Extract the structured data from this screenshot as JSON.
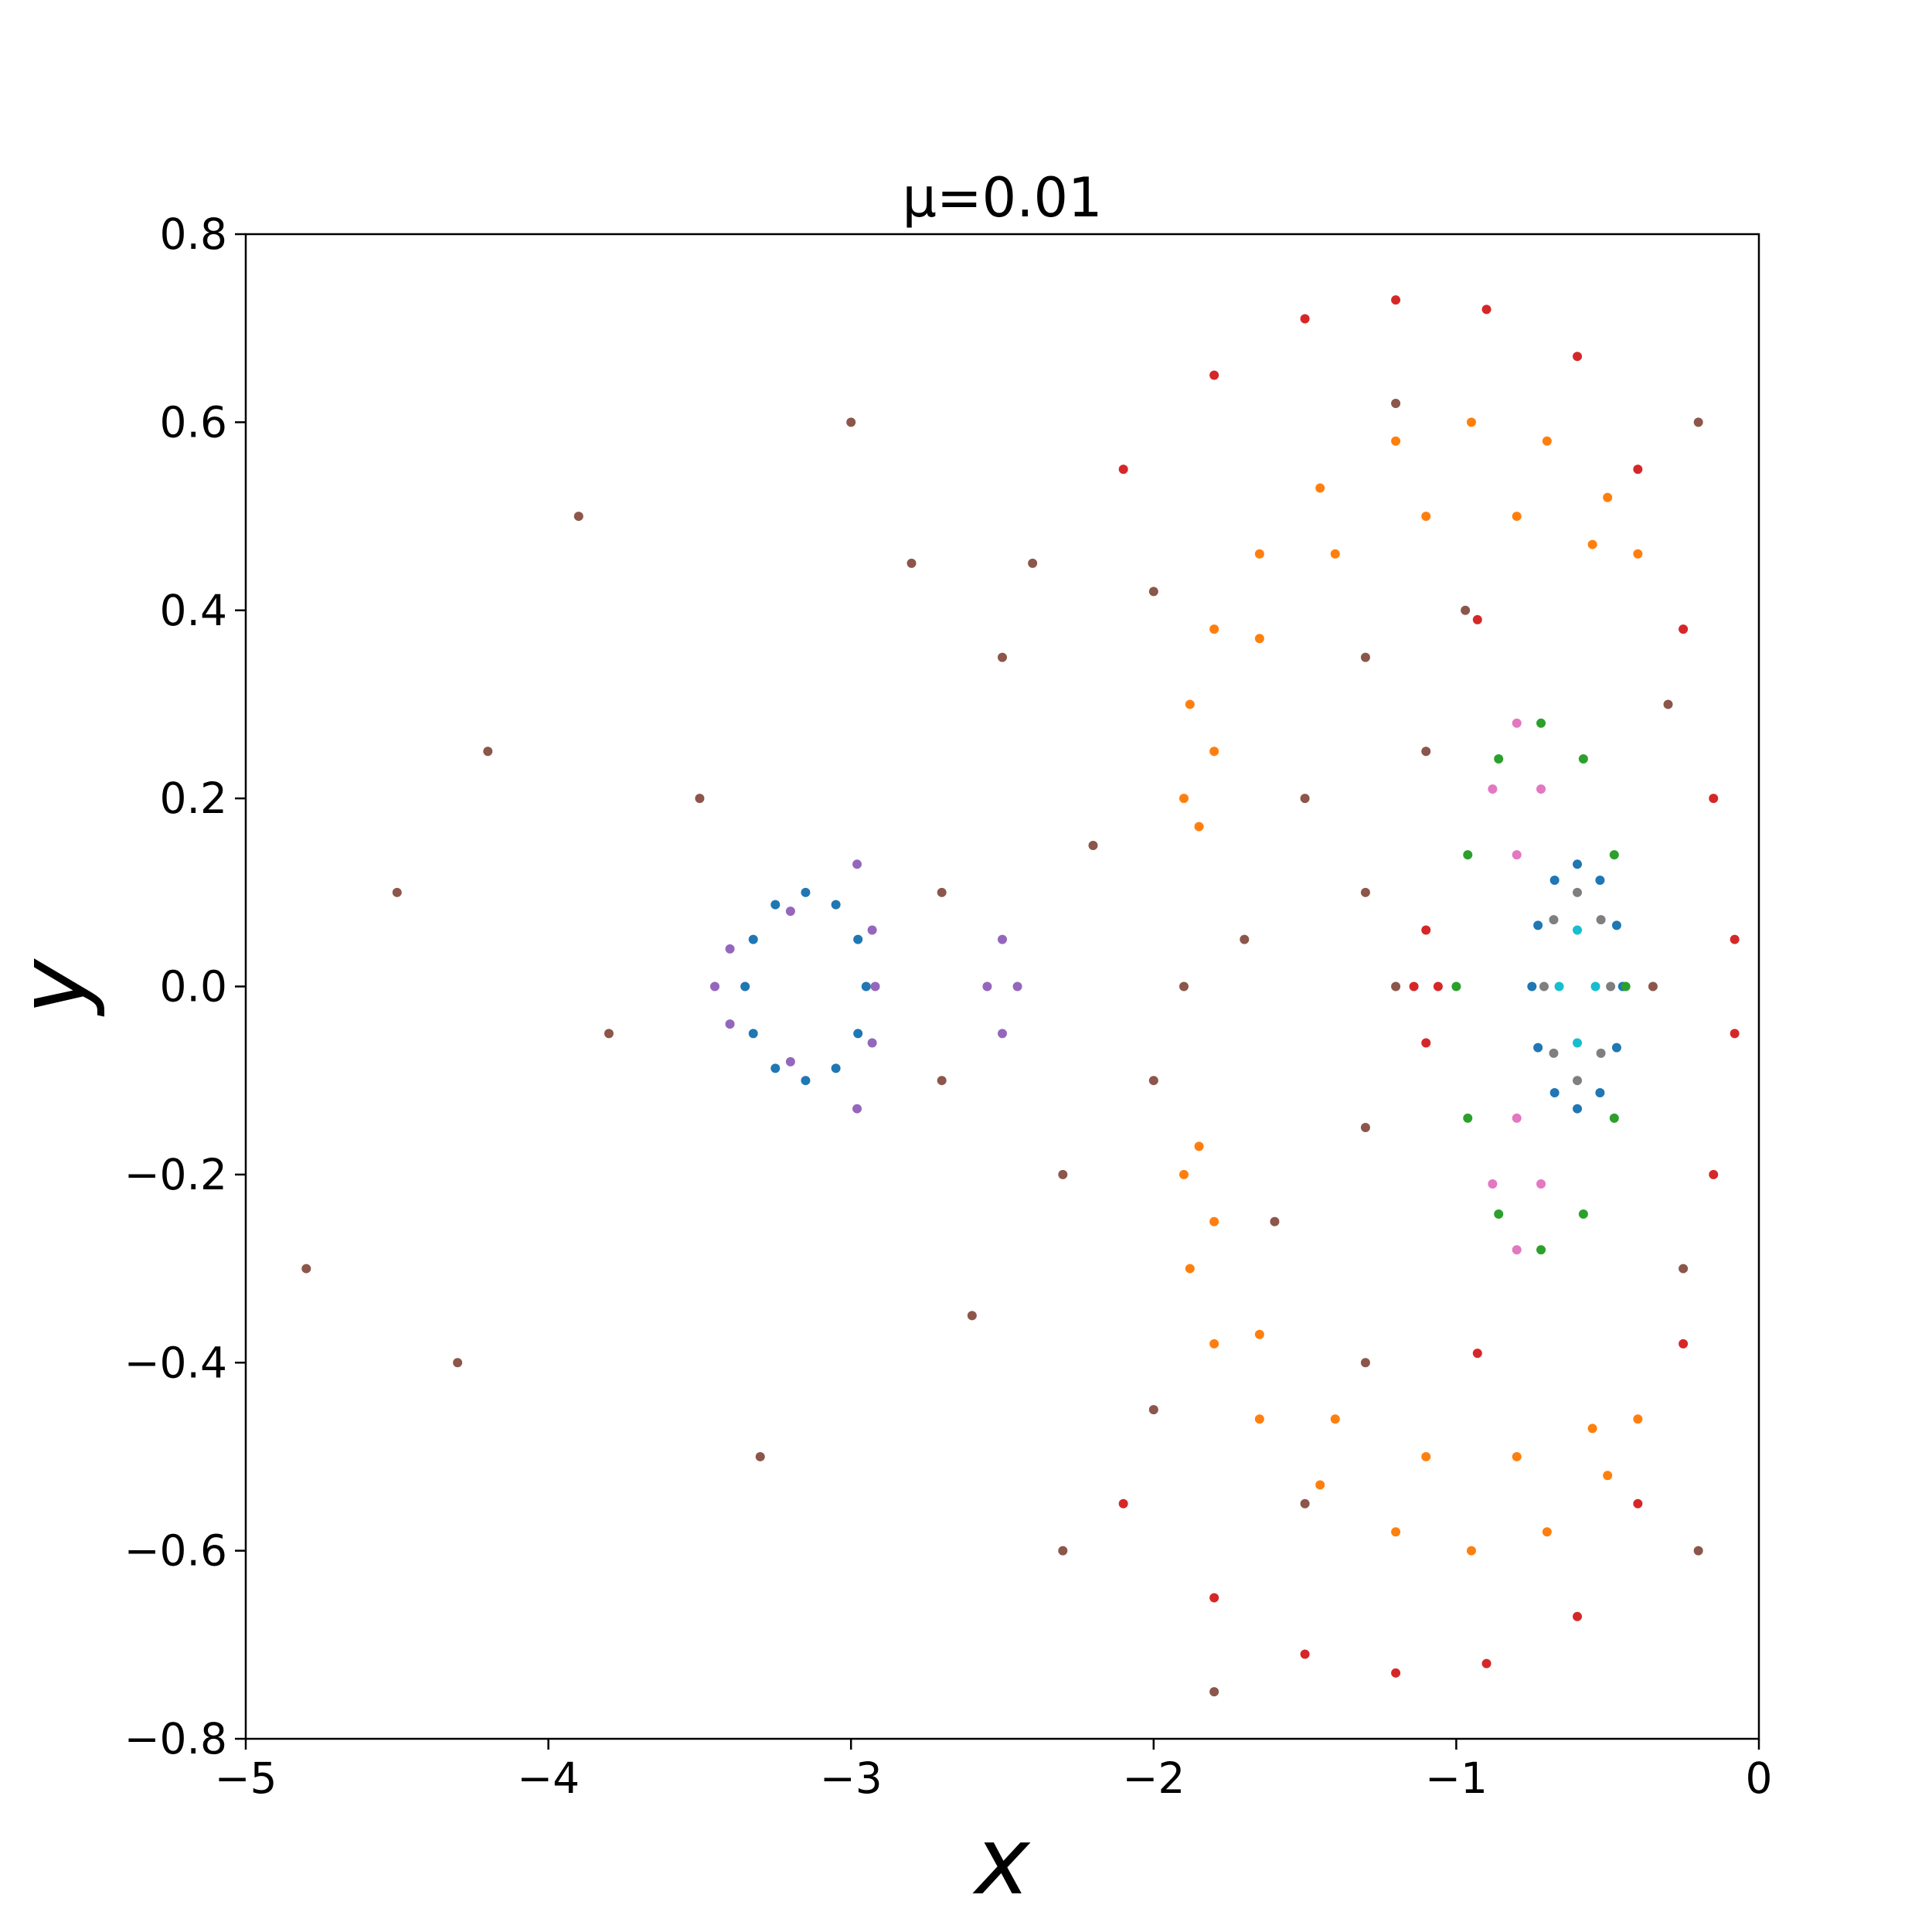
{
  "chart_data": {
    "type": "scatter",
    "title": "μ=0.01",
    "x_label": "x",
    "y_label": "y",
    "xlim": [
      -5,
      0
    ],
    "ylim": [
      -0.8,
      0.8
    ],
    "xticks": [
      {
        "value": -5,
        "label": "−5"
      },
      {
        "value": -4,
        "label": "−4"
      },
      {
        "value": -3,
        "label": "−3"
      },
      {
        "value": -2,
        "label": "−2"
      },
      {
        "value": -1,
        "label": "−1"
      },
      0
    ],
    "yticks": [
      {
        "value": -0.8,
        "label": "−0.8"
      },
      {
        "value": -0.6,
        "label": "−0.6"
      },
      {
        "value": -0.4,
        "label": "−0.4"
      },
      {
        "value": -0.2,
        "label": "−0.2"
      },
      {
        "value": 0,
        "label": "0.0"
      },
      0.2,
      0.4,
      0.6,
      0.8
    ],
    "grid": false,
    "series": [
      {
        "color": "#1f77b4",
        "x": [
          -0.45,
          -0.47,
          -0.525,
          -0.6,
          -0.675,
          -0.73,
          -0.75,
          -0.73,
          -0.675,
          -0.6,
          -0.525,
          -0.47,
          -2.95,
          -2.977,
          -3.05,
          -3.15,
          -3.25,
          -3.323,
          -3.35,
          -3.323,
          -3.25,
          -3.15,
          -3.05,
          -2.977
        ],
        "values": [
          0,
          0.065,
          0.113,
          0.13,
          0.113,
          0.065,
          0,
          -0.065,
          -0.113,
          -0.13,
          -0.113,
          -0.065,
          0,
          0.05,
          0.087,
          0.1,
          0.087,
          0.05,
          0,
          -0.05,
          -0.087,
          -0.1,
          -0.087,
          -0.05
        ]
      },
      {
        "color": "#ff7f0e",
        "x": [
          -1.9,
          -1.88,
          -1.8,
          -1.65,
          -1.45,
          -1.2,
          -0.95,
          -0.7,
          -0.5,
          -0.4,
          -0.55,
          -0.8,
          -1.1,
          -1.4,
          -1.65,
          -1.8,
          -1.85,
          -1.9,
          -1.88,
          -1.8,
          -1.65,
          -1.45,
          -1.2,
          -0.95,
          -0.7,
          -0.5,
          -0.4,
          -0.55,
          -0.8,
          -1.1,
          -1.4,
          -1.65,
          -1.8,
          -1.85
        ],
        "values": [
          0.2,
          0.3,
          0.38,
          0.46,
          0.53,
          0.58,
          0.6,
          0.58,
          0.52,
          0.46,
          0.47,
          0.5,
          0.5,
          0.46,
          0.37,
          0.25,
          0.17,
          -0.2,
          -0.3,
          -0.38,
          -0.46,
          -0.53,
          -0.58,
          -0.6,
          -0.58,
          -0.52,
          -0.46,
          -0.47,
          -0.5,
          -0.5,
          -0.46,
          -0.37,
          -0.25,
          -0.17
        ]
      },
      {
        "color": "#2ca02c",
        "x": [
          -0.44,
          -0.478,
          -0.58,
          -0.72,
          -0.86,
          -0.962,
          -1.0,
          -0.962,
          -0.86,
          -0.72,
          -0.58,
          -0.478
        ],
        "values": [
          0,
          0.14,
          0.242,
          0.28,
          0.242,
          0.14,
          0,
          -0.14,
          -0.242,
          -0.28,
          -0.242,
          -0.14
        ]
      },
      {
        "color": "#d62728",
        "x": [
          -2.1,
          -1.8,
          -1.5,
          -1.2,
          -0.9,
          -0.6,
          -0.4,
          -0.25,
          -0.15,
          -0.08,
          -0.08,
          -0.15,
          -0.25,
          -0.4,
          -0.6,
          -0.9,
          -1.2,
          -1.5,
          -1.8,
          -2.1,
          -0.93,
          -0.93,
          -1.1,
          -1.1,
          -1.14,
          -1.06
        ],
        "values": [
          0.55,
          0.65,
          0.71,
          0.73,
          0.72,
          0.67,
          0.55,
          0.38,
          0.2,
          0.05,
          -0.05,
          -0.2,
          -0.38,
          -0.55,
          -0.67,
          -0.72,
          -0.73,
          -0.71,
          -0.65,
          -0.55,
          0.39,
          -0.39,
          0.06,
          -0.06,
          0,
          0
        ]
      },
      {
        "color": "#9467bd",
        "x": [
          -2.98,
          -3.2,
          -3.4,
          -3.45,
          -3.4,
          -3.2,
          -2.98,
          -2.93,
          -2.92,
          -2.93,
          -2.5,
          -2.5,
          -2.45,
          -2.55
        ],
        "values": [
          0.13,
          0.08,
          0.04,
          0,
          -0.04,
          -0.08,
          -0.13,
          -0.06,
          0,
          0.06,
          0.05,
          -0.05,
          0,
          0
        ]
      },
      {
        "color": "#8c564b",
        "x": [
          -2.5,
          -2.2,
          -1.7,
          -1.5,
          -1.3,
          -1.3,
          -1.6,
          -2.0,
          -2.3,
          -2.7,
          -2.7,
          -3.5,
          -3.8,
          -4.2,
          -4.5,
          -4.8,
          -2.8,
          -2.4,
          -2.0,
          -1.3,
          -1.1,
          -0.3,
          -0.25,
          -1.3,
          -2.0,
          -2.6,
          -2.3,
          -1.8,
          -1.5,
          -1.2,
          -0.2,
          -0.2,
          -3.9,
          -4.3,
          -3.3,
          -3.0,
          -1.9,
          -1.2,
          -0.35,
          -0.97
        ],
        "values": [
          0.35,
          0.15,
          0.05,
          0.2,
          0.1,
          -0.15,
          -0.25,
          -0.1,
          -0.2,
          0.1,
          -0.1,
          0.2,
          -0.05,
          0.25,
          0.1,
          -0.3,
          0.45,
          0.45,
          0.42,
          0.35,
          0.25,
          0.3,
          -0.3,
          -0.4,
          -0.45,
          -0.35,
          -0.6,
          -0.75,
          -0.55,
          0.62,
          0.6,
          -0.6,
          0.5,
          -0.4,
          -0.5,
          0.6,
          0,
          0,
          0,
          0.4
        ]
      },
      {
        "color": "#e377c2",
        "x": [
          -0.8,
          -0.72,
          -0.8,
          -0.88,
          -0.8,
          -0.72,
          -0.8,
          -0.88
        ],
        "values": [
          0.28,
          0.21,
          0.14,
          0.21,
          -0.28,
          -0.21,
          -0.14,
          -0.21
        ]
      },
      {
        "color": "#7f7f7f",
        "x": [
          -0.49,
          -0.522,
          -0.6,
          -0.678,
          -0.71,
          -0.678,
          -0.6,
          -0.522
        ],
        "values": [
          0,
          0.071,
          0.1,
          0.071,
          0,
          -0.071,
          -0.1,
          -0.071
        ]
      },
      {
        "color": "#17becf",
        "x": [
          -0.54,
          -0.6,
          -0.66,
          -0.6
        ],
        "values": [
          0,
          0.06,
          0,
          -0.06
        ]
      }
    ]
  }
}
